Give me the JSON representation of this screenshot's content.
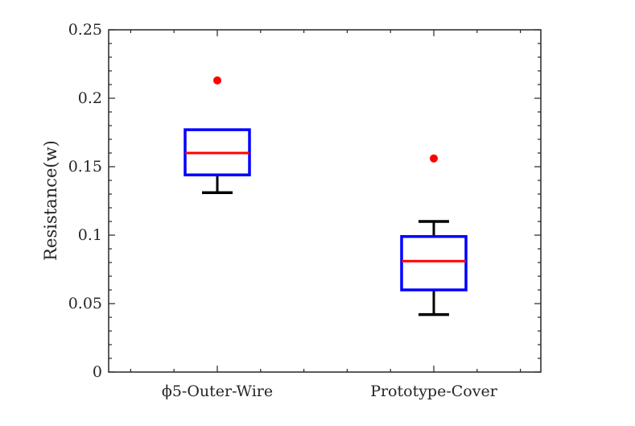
{
  "chart_data": {
    "type": "boxplot",
    "title": "",
    "xlabel": "",
    "ylabel": "Resistance(w)",
    "ylim": [
      0,
      0.25
    ],
    "yticks": [
      "0",
      "0.05",
      "0.1",
      "0.15",
      "0.2",
      "0.25"
    ],
    "categories": [
      "ϕ5-Outer-Wire",
      "Prototype-Cover"
    ],
    "boxes": [
      {
        "whisker_low": 0.131,
        "q1": 0.144,
        "median": 0.16,
        "q3": 0.177,
        "whisker_high": 0.177,
        "outliers": [
          0.213
        ]
      },
      {
        "whisker_low": 0.042,
        "q1": 0.06,
        "median": 0.081,
        "q3": 0.099,
        "whisker_high": 0.11,
        "outliers": [
          0.156
        ]
      }
    ],
    "grid": false,
    "colors": {
      "box": "#0000ff",
      "median": "#ff0000",
      "whisker": "#000000",
      "outlier": "#ff0000",
      "axis": "#262626"
    }
  }
}
